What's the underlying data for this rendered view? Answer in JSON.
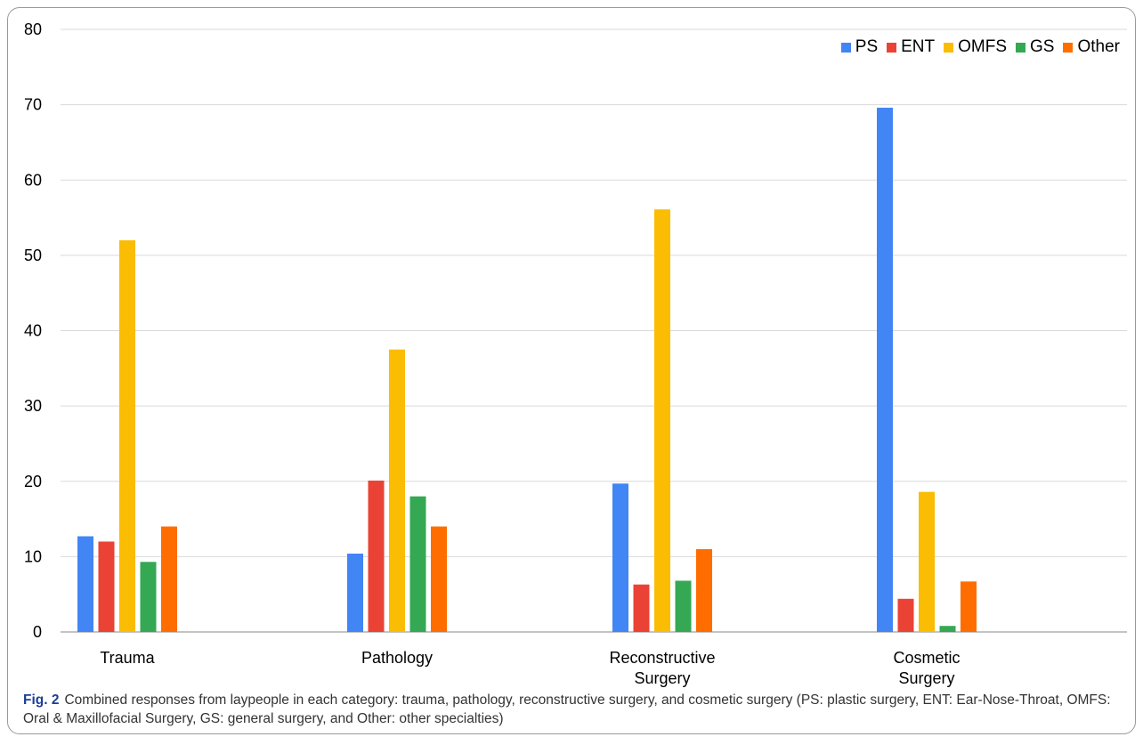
{
  "chart_data": {
    "type": "bar",
    "title": "",
    "xlabel": "",
    "ylabel": "",
    "ylim": [
      0,
      80
    ],
    "yticks": [
      "0",
      "10",
      "20",
      "30",
      "40",
      "50",
      "60",
      "70",
      "80"
    ],
    "grid": true,
    "legend_position": "top-right",
    "categories": [
      [
        "Trauma"
      ],
      [
        "Pathology"
      ],
      [
        "Reconstructive",
        "Surgery"
      ],
      [
        "Cosmetic",
        "Surgery"
      ]
    ],
    "series": [
      {
        "name": "PS",
        "color": "#4285F4",
        "values": [
          12.7,
          10.4,
          19.7,
          69.6
        ]
      },
      {
        "name": "ENT",
        "color": "#EA4335",
        "values": [
          12.0,
          20.1,
          6.3,
          4.4
        ]
      },
      {
        "name": "OMFS",
        "color": "#FBBC04",
        "values": [
          52.0,
          37.5,
          56.1,
          18.6
        ]
      },
      {
        "name": "GS",
        "color": "#34A853",
        "values": [
          9.3,
          18.0,
          6.8,
          0.8
        ]
      },
      {
        "name": "Other",
        "color": "#FF6D01",
        "values": [
          14.0,
          14.0,
          11.0,
          6.7
        ]
      }
    ]
  },
  "caption": {
    "label": "Fig. 2",
    "text": "Combined responses from laypeople in each category: trauma, pathology, reconstructive surgery, and cosmetic surgery (PS: plastic surgery, ENT: Ear-Nose-Throat, OMFS: Oral & Maxillofacial Surgery, GS: general surgery, and Other: other specialties)"
  }
}
